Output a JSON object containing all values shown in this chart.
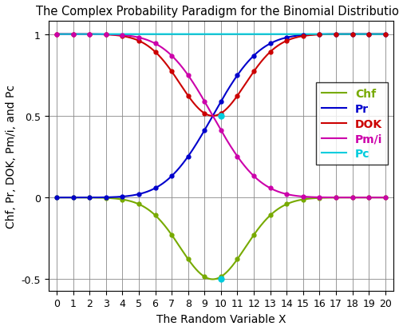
{
  "title": "The Complex Probability Paradigm for the Binomial Distribution",
  "xlabel": "The Random Variable X",
  "ylabel": "Chf, Pr, DOK, Pm/i, and Pc",
  "n": 20,
  "p": 0.5,
  "x_min": 0,
  "x_max": 20,
  "y_min": -0.57,
  "y_max": 1.08,
  "colors": {
    "Chf": "#77aa00",
    "Pr": "#0000cc",
    "DOK": "#cc0000",
    "Pmi": "#cc00aa",
    "Pc": "#00ccdd"
  },
  "legend_labels": [
    "Chf",
    "Pr",
    "DOK",
    "Pm/i",
    "Pc"
  ],
  "background_color": "#ffffff",
  "grid_color": "#888888",
  "title_fontsize": 10.5,
  "label_fontsize": 10,
  "tick_fontsize": 9,
  "legend_fontsize": 10
}
